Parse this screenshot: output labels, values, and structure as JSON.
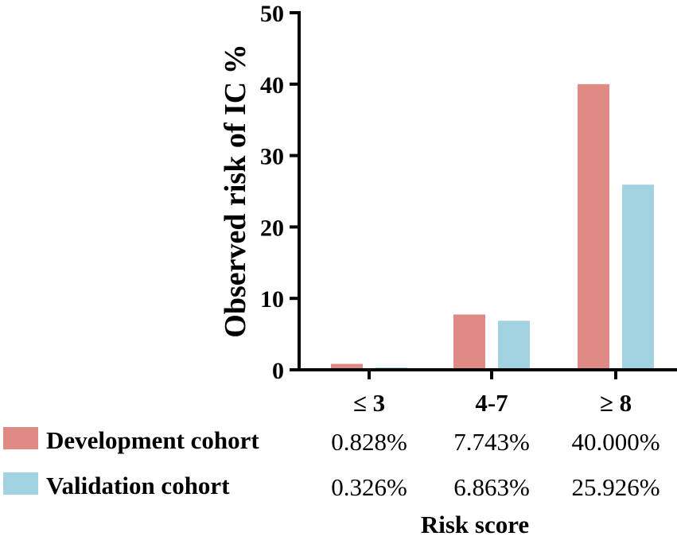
{
  "chart_data": {
    "type": "bar",
    "title": "",
    "xlabel": "Risk score",
    "ylabel": "Observed risk of IC %",
    "ylim": [
      0,
      50
    ],
    "yticks": [
      0,
      10,
      20,
      30,
      40,
      50
    ],
    "categories": [
      "≤ 3",
      "4-7",
      "≥ 8"
    ],
    "series": [
      {
        "name": "Development cohort",
        "color": "#e08a85",
        "values": [
          0.828,
          7.743,
          40.0
        ],
        "labels": [
          "0.828%",
          "7.743%",
          "40.000%"
        ]
      },
      {
        "name": "Validation cohort",
        "color": "#a3d2e0",
        "values": [
          0.326,
          6.863,
          25.926
        ],
        "labels": [
          "0.326%",
          "6.863%",
          "25.926%"
        ]
      }
    ],
    "grid": false,
    "legend": "bottom-table"
  }
}
